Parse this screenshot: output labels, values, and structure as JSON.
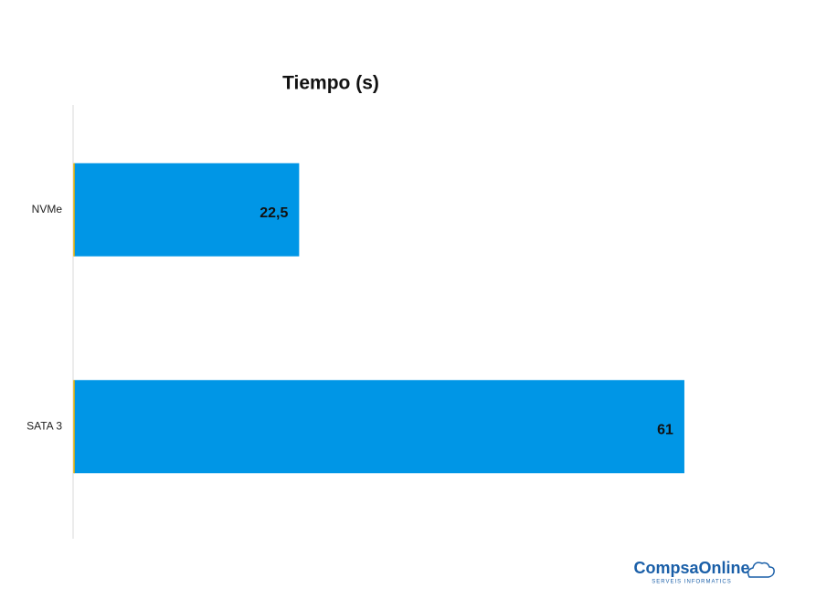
{
  "chart_data": {
    "type": "bar",
    "orientation": "horizontal",
    "title": "Tiempo (s)",
    "categories": [
      "NVMe",
      "SATA 3"
    ],
    "values": [
      22.5,
      61
    ],
    "value_labels": [
      "22,5",
      "61"
    ],
    "color": "#0096e6"
  },
  "logo": {
    "name": "CompsaOnline",
    "tagline": "SERVEIS INFORMATICS"
  }
}
